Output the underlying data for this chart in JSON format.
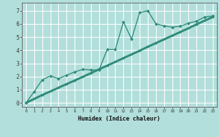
{
  "xlabel": "Humidex (Indice chaleur)",
  "background_color": "#b2dfdb",
  "grid_color": "#ffffff",
  "line_color": "#2e8b7a",
  "xlim": [
    -0.5,
    23.5
  ],
  "ylim": [
    -0.3,
    7.6
  ],
  "xticks": [
    0,
    1,
    2,
    3,
    4,
    5,
    6,
    7,
    8,
    9,
    10,
    11,
    12,
    13,
    14,
    15,
    16,
    17,
    18,
    19,
    20,
    21,
    22,
    23
  ],
  "yticks": [
    0,
    1,
    2,
    3,
    4,
    5,
    6,
    7
  ],
  "line1_x": [
    0,
    1,
    2,
    3,
    4,
    5,
    6,
    7,
    8,
    9,
    10,
    11,
    12,
    13,
    14,
    15,
    16,
    17,
    18,
    19,
    20,
    21,
    22,
    23
  ],
  "line1_y": [
    0.0,
    0.3,
    0.6,
    0.87,
    1.15,
    1.43,
    1.7,
    1.98,
    2.26,
    2.55,
    2.83,
    3.11,
    3.4,
    3.68,
    3.96,
    4.26,
    4.54,
    4.82,
    5.1,
    5.38,
    5.66,
    5.96,
    6.24,
    6.52
  ],
  "line2_x": [
    0,
    1,
    2,
    3,
    4,
    5,
    6,
    7,
    8,
    9,
    10,
    11,
    12,
    13,
    14,
    15,
    16,
    17,
    18,
    19,
    20,
    21,
    22,
    23
  ],
  "line2_y": [
    0.0,
    0.85,
    1.75,
    2.05,
    1.85,
    2.1,
    2.35,
    2.55,
    2.5,
    2.5,
    4.05,
    4.05,
    6.15,
    4.85,
    6.85,
    7.0,
    6.0,
    5.85,
    5.75,
    5.82,
    6.05,
    6.2,
    6.52,
    6.6
  ]
}
